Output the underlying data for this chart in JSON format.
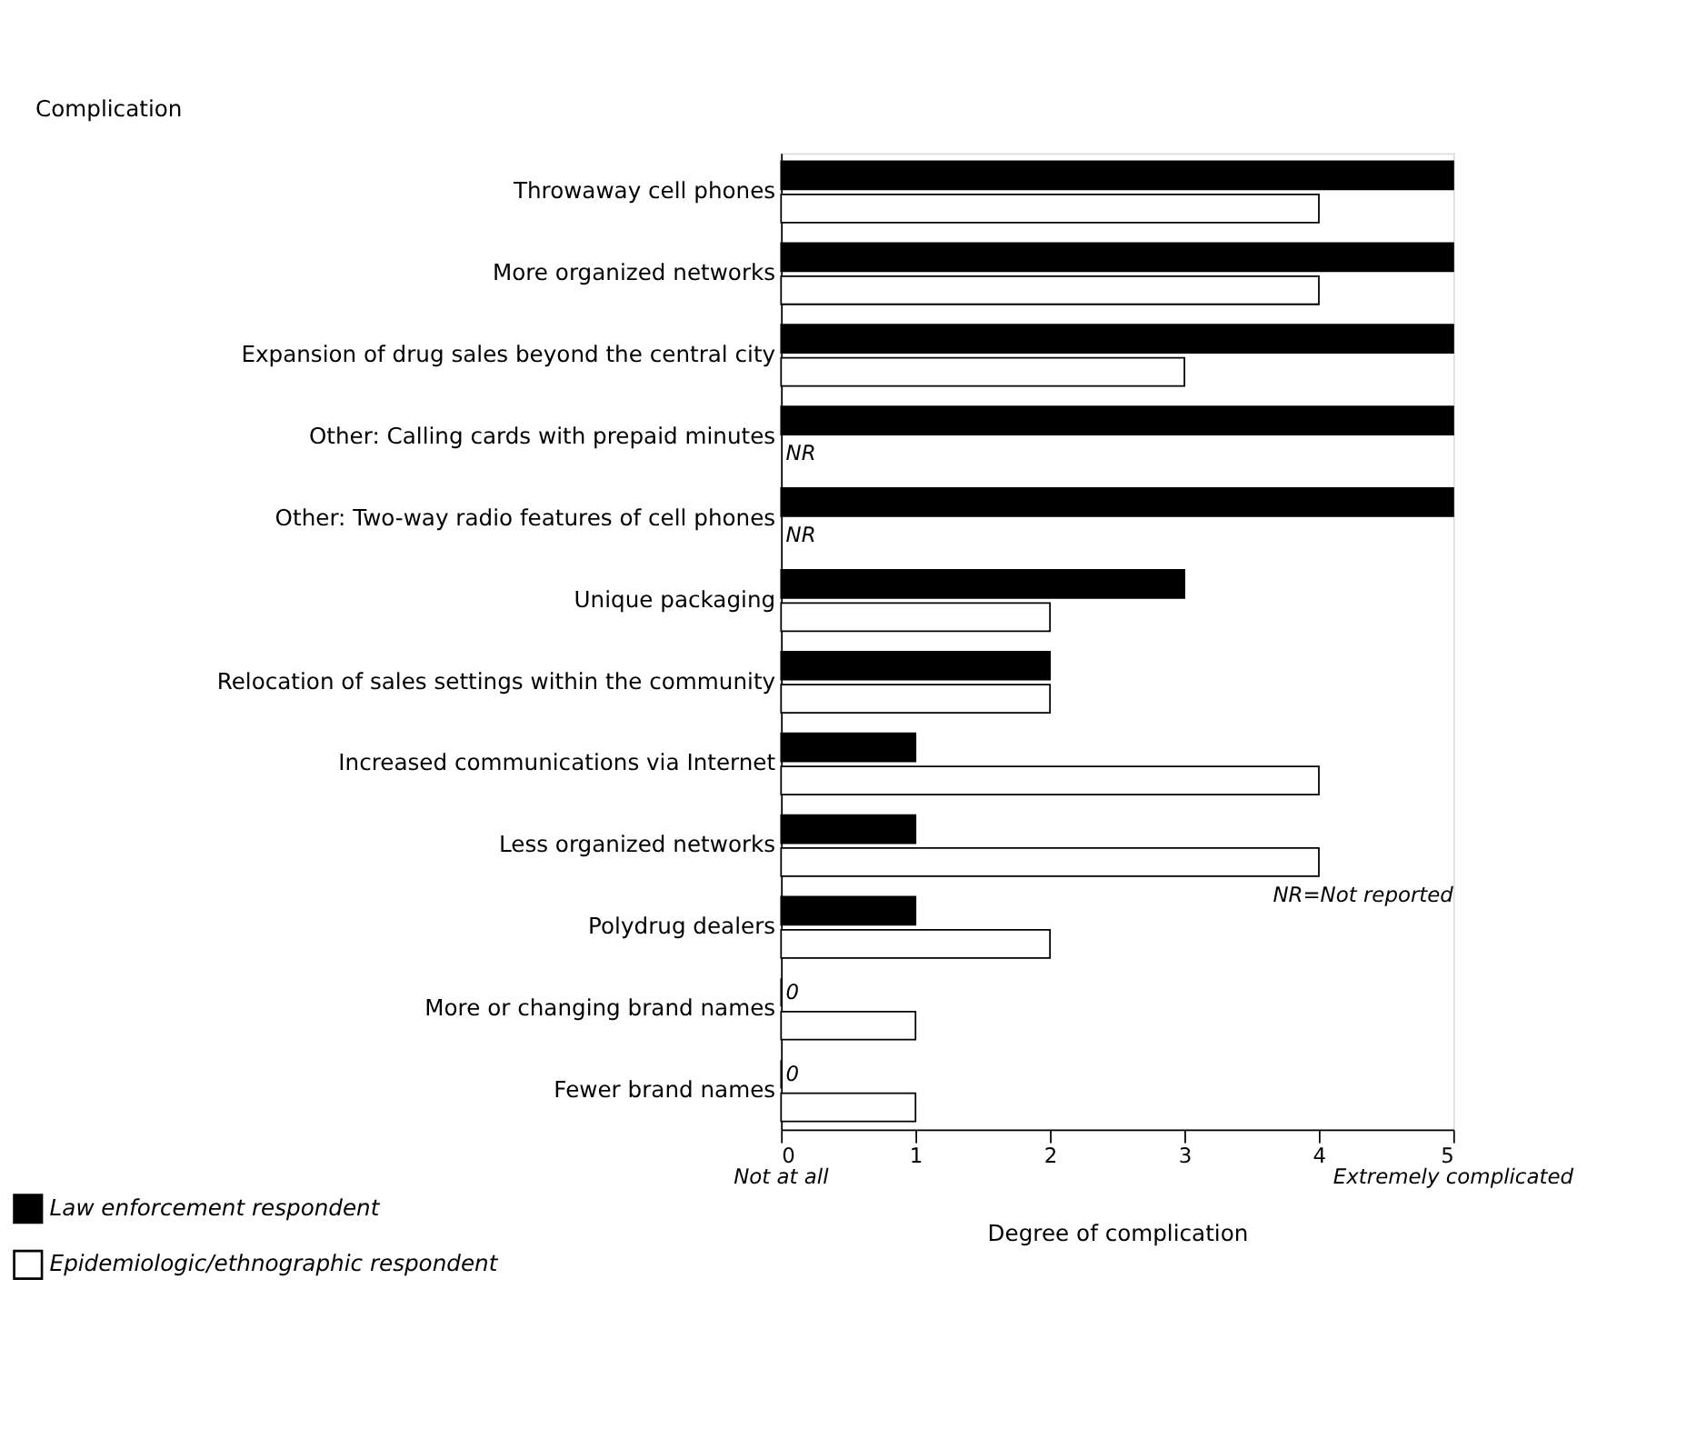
{
  "chart_data": {
    "type": "bar",
    "orientation": "horizontal",
    "ylabel": "Complication",
    "xlabel": "Degree of complication",
    "categories": [
      "Throwaway cell phones",
      "More organized networks",
      "Expansion of drug sales beyond the central city",
      "Other: Calling cards with prepaid minutes",
      "Other: Two-way radio features of cell phones",
      "Unique packaging",
      "Relocation of sales settings within the community",
      "Increased communications via Internet",
      "Less organized networks",
      "Polydrug dealers",
      "More or changing brand names",
      "Fewer brand names"
    ],
    "series": [
      {
        "name": "Law enforcement respondent",
        "color": "#000000",
        "values": [
          5,
          5,
          5,
          5,
          5,
          3,
          2,
          1,
          1,
          1,
          0,
          0
        ],
        "value_labels": [
          null,
          null,
          null,
          null,
          null,
          null,
          null,
          null,
          null,
          null,
          "0",
          "0"
        ]
      },
      {
        "name": "Epidemiologic/ethnographic respondent",
        "color": "#ffffff",
        "values": [
          4,
          4,
          3,
          null,
          null,
          2,
          2,
          4,
          4,
          2,
          1,
          1
        ],
        "value_labels": [
          null,
          null,
          null,
          "NR",
          "NR",
          null,
          null,
          null,
          null,
          null,
          null,
          null
        ]
      }
    ],
    "xlim": [
      0,
      5
    ],
    "xticks": [
      0,
      1,
      2,
      3,
      4,
      5
    ],
    "annotations": [
      "Not at all",
      "Extremely complicated",
      "NR=Not reported"
    ],
    "grid": false,
    "legend": "bottom left"
  }
}
